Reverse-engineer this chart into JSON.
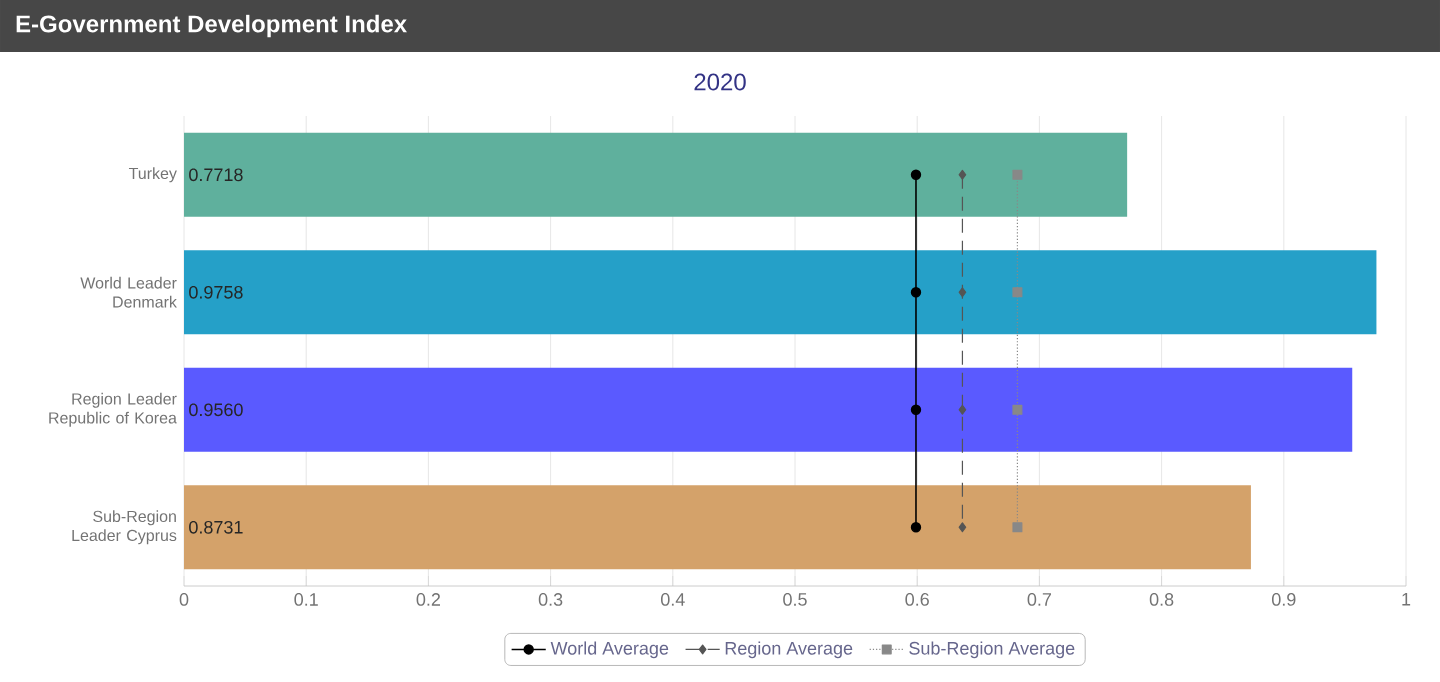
{
  "chart_data": {
    "type": "bar",
    "orientation": "horizontal",
    "title": "E-Government Development Index",
    "subtitle": "2020",
    "categories": [
      "Turkey",
      "World Leader Denmark",
      "Region Leader Republic of Korea",
      "Sub-Region Leader Cyprus"
    ],
    "values": [
      0.7718,
      0.9758,
      0.956,
      0.8731
    ],
    "value_labels": [
      "0.7718",
      "0.9758",
      "0.9560",
      "0.8731"
    ],
    "colors": [
      "#5fb09d",
      "#25a0c8",
      "#5a5aff",
      "#d4a26a"
    ],
    "series": [
      {
        "name": "World Average",
        "type": "line",
        "color": "#000000",
        "marker": "circle",
        "line_style": "solid",
        "values": [
          0.599,
          0.599,
          0.599,
          0.599
        ]
      },
      {
        "name": "Region Average",
        "type": "line",
        "color": "#555555",
        "marker": "diamond",
        "line_style": "dashed",
        "values": [
          0.637,
          0.637,
          0.637,
          0.637
        ]
      },
      {
        "name": "Sub-Region Average",
        "type": "line",
        "color": "#888888",
        "marker": "square",
        "line_style": "dotted",
        "values": [
          0.682,
          0.682,
          0.682,
          0.682
        ]
      }
    ],
    "xlim": [
      0,
      1
    ],
    "xticks": [
      0,
      0.1,
      0.2,
      0.3,
      0.4,
      0.5,
      0.6,
      0.7,
      0.8,
      0.9,
      1
    ],
    "grid": "x",
    "legend": "bottom"
  }
}
